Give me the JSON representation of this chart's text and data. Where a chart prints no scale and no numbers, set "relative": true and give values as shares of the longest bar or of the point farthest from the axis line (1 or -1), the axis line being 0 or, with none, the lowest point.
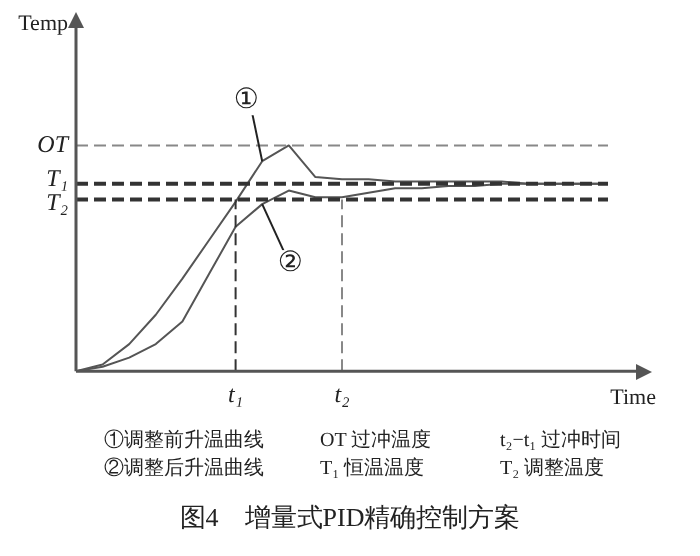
{
  "chart_data": {
    "type": "line",
    "title": "图4　增量式PID精确控制方案",
    "xlabel": "Time",
    "ylabel": "Temp",
    "relative": true,
    "grid": false,
    "legend": false,
    "marker": "none",
    "categories": [
      null,
      null,
      null,
      null,
      null,
      null,
      "t₁",
      null,
      null,
      null,
      "t₂",
      null,
      null,
      null,
      null,
      null,
      null,
      null,
      null,
      null,
      null
    ],
    "series": [
      {
        "color": "#555555",
        "values": [
          0,
          0.03,
          0.12,
          0.25,
          0.41,
          0.58,
          0.75,
          0.93,
          1,
          0.86,
          0.85,
          0.85,
          0.84,
          0.84,
          0.84,
          0.84,
          0.84,
          0.83,
          0.83,
          0.83,
          0.83
        ]
      },
      {
        "color": "#555555",
        "values": [
          0,
          0.02,
          0.06,
          0.12,
          0.22,
          0.43,
          0.64,
          0.74,
          0.8,
          0.77,
          0.77,
          0.79,
          0.81,
          0.81,
          0.82,
          0.82,
          0.83,
          0.83,
          0.83,
          0.83,
          0.83
        ]
      }
    ],
    "ref_lines": [
      {
        "axis": "y",
        "value": 1,
        "label": "OT",
        "line_style": "dashed",
        "color": "#888888"
      },
      {
        "axis": "y",
        "value": 0.83,
        "label": "T₁",
        "line_style": "dashed",
        "color": "#333333"
      },
      {
        "axis": "y",
        "value": 0.76,
        "label": "T₂",
        "line_style": "dashed",
        "color": "#333333"
      },
      {
        "axis": "x",
        "value": "t₁",
        "line_style": "dashed",
        "color": "#333333"
      },
      {
        "axis": "x",
        "value": "t₂",
        "line_style": "dashed",
        "color": "#888888"
      }
    ],
    "annotations": [
      "①",
      "②",
      "①调整前升温曲线",
      "OT 过冲温度",
      "t₂−t₁ 过冲时间",
      "②调整后升温曲线",
      "T₁ 恒温温度",
      "T₂ 调整温度"
    ]
  }
}
